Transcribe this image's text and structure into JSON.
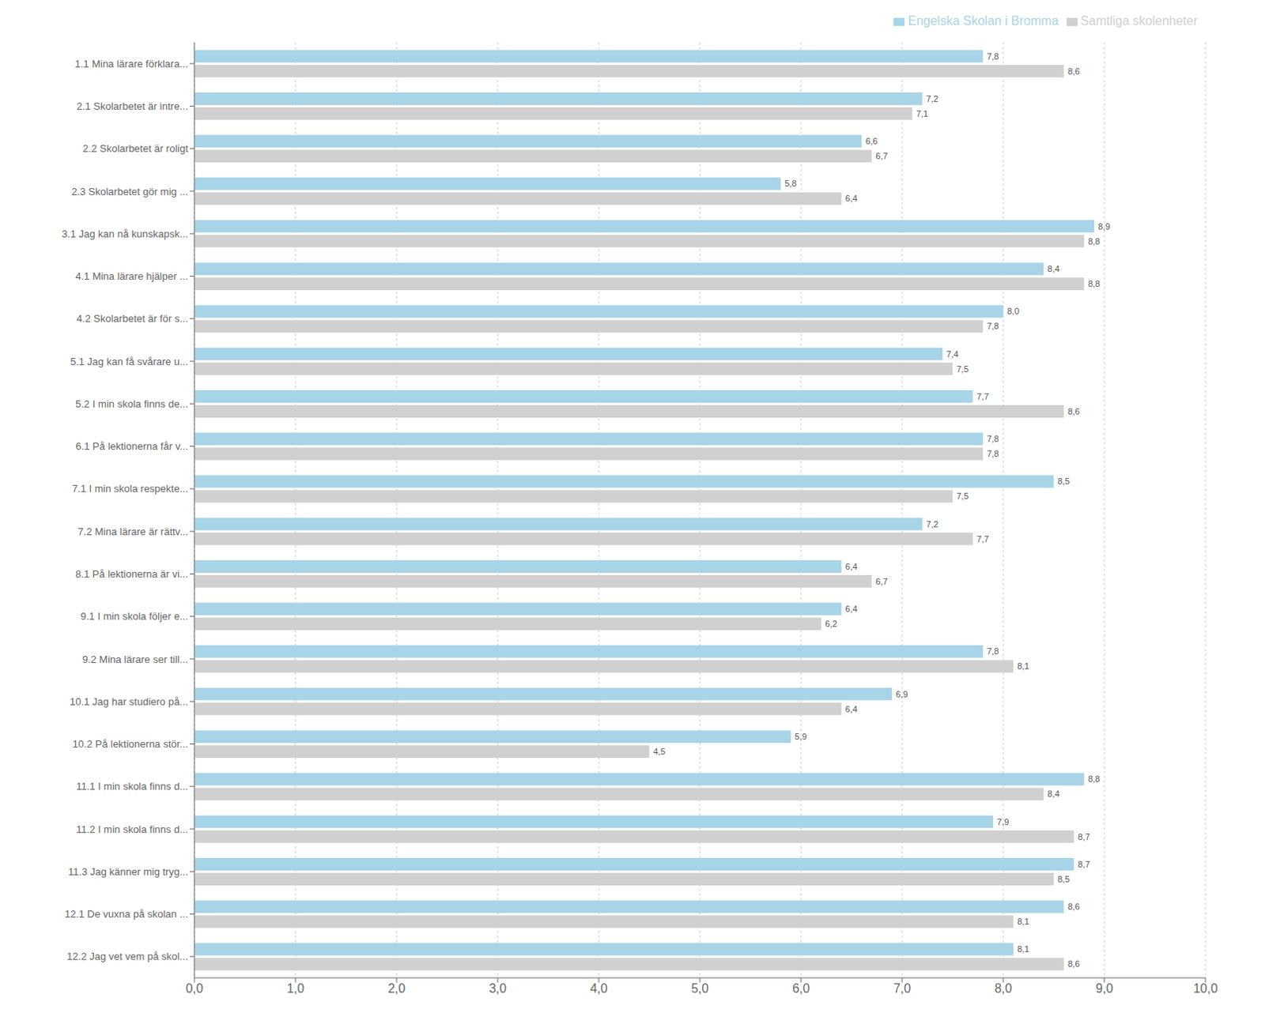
{
  "chart_data": {
    "type": "bar",
    "orientation": "horizontal",
    "categories": [
      "1.1 Mina lärare förklara...",
      "2.1 Skolarbetet är intre...",
      "2.2 Skolarbetet är roligt",
      "2.3 Skolarbetet gör mig ...",
      "3.1 Jag kan nå kunskapsk...",
      "4.1 Mina lärare hjälper ...",
      "4.2 Skolarbetet är för s...",
      "5.1 Jag kan få svårare u...",
      "5.2 I min skola finns de...",
      "6.1 På lektionerna får v...",
      "7.1 I min skola respekte...",
      "7.2 Mina lärare är rättv...",
      "8.1 På lektionerna är vi...",
      "9.1 I min skola följer e...",
      "9.2 Mina lärare ser till...",
      "10.1 Jag har studiero på...",
      "10.2 På lektionerna stör...",
      "11.1 I min skola finns d...",
      "11.2 I min skola finns d...",
      "11.3 Jag känner mig tryg...",
      "12.1 De vuxna på skolan ...",
      "12.2 Jag vet vem på skol..."
    ],
    "series": [
      {
        "name": "Engelska Skolan i Bromma",
        "color": "#a8d4e8",
        "values": [
          7.8,
          7.2,
          6.6,
          5.8,
          8.9,
          8.4,
          8.0,
          7.4,
          7.7,
          7.8,
          8.5,
          7.2,
          6.4,
          6.4,
          7.8,
          6.9,
          5.9,
          8.8,
          7.9,
          8.7,
          8.6,
          8.1
        ],
        "value_labels": [
          "7,8",
          "7,2",
          "6,6",
          "5,8",
          "8,9",
          "8,4",
          "8,0",
          "7,4",
          "7,7",
          "7,8",
          "8,5",
          "7,2",
          "6,4",
          "6,4",
          "7,8",
          "6,9",
          "5,9",
          "8,8",
          "7,9",
          "8,7",
          "8,6",
          "8,1"
        ]
      },
      {
        "name": "Samtliga skolenheter",
        "color": "#d0d0d0",
        "values": [
          8.6,
          7.1,
          6.7,
          6.4,
          8.8,
          8.8,
          7.8,
          7.5,
          8.6,
          7.8,
          7.5,
          7.7,
          6.7,
          6.2,
          8.1,
          6.4,
          4.5,
          8.4,
          8.7,
          8.5,
          8.1,
          8.6
        ],
        "value_labels": [
          "8,6",
          "7,1",
          "6,7",
          "6,4",
          "8,8",
          "8,8",
          "7,8",
          "7,5",
          "8,6",
          "7,8",
          "7,5",
          "7,7",
          "6,7",
          "6,2",
          "8,1",
          "6,4",
          "4,5",
          "8,4",
          "8,7",
          "8,5",
          "8,1",
          "8,6"
        ]
      }
    ],
    "xlim": [
      0,
      10
    ],
    "xticks": [
      {
        "value": 0,
        "label": "0,0"
      },
      {
        "value": 1,
        "label": "1,0"
      },
      {
        "value": 2,
        "label": "2,0"
      },
      {
        "value": 3,
        "label": "3,0"
      },
      {
        "value": 4,
        "label": "4,0"
      },
      {
        "value": 5,
        "label": "5,0"
      },
      {
        "value": 6,
        "label": "6,0"
      },
      {
        "value": 7,
        "label": "7,0"
      },
      {
        "value": 8,
        "label": "8,0"
      },
      {
        "value": 9,
        "label": "9,0"
      },
      {
        "value": 10,
        "label": "10,0"
      }
    ],
    "grid": true,
    "legend": "upper right",
    "data_labels": true
  }
}
